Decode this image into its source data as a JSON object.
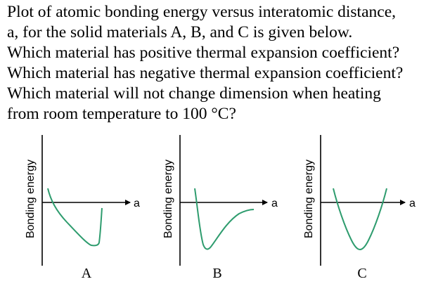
{
  "question": {
    "lines": [
      "Plot of atomic bonding energy versus interatomic distance,",
      "a, for the solid materials A, B, and C is given below.",
      "Which material has positive thermal expansion coefficient?",
      "Which material has negative thermal expansion coefficient?",
      "Which material will not change dimension when heating",
      "from room temperature to 100 °C?"
    ]
  },
  "panels": [
    {
      "id": "A",
      "label": "A",
      "ylabel": "Bonding energy",
      "xlabel": "a",
      "curve_shape": "asymmetric-skewed-left"
    },
    {
      "id": "B",
      "label": "B",
      "ylabel": "Bonding energy",
      "xlabel": "a",
      "curve_shape": "asymmetric-skewed-right"
    },
    {
      "id": "C",
      "label": "C",
      "ylabel": "Bonding energy",
      "xlabel": "a",
      "curve_shape": "symmetric"
    }
  ],
  "colors": {
    "curve": "#2e9c6e",
    "axis": "#000000",
    "text": "#000000"
  }
}
